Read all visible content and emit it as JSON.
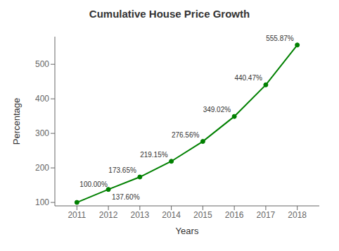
{
  "chart_data": {
    "type": "line",
    "title": "Cumulative House Price Growth",
    "xlabel": "Years",
    "ylabel": "Percentage",
    "x": [
      2011,
      2012,
      2013,
      2014,
      2015,
      2016,
      2017,
      2018
    ],
    "values": [
      100.0,
      137.6,
      173.65,
      219.15,
      276.56,
      349.02,
      440.47,
      555.87
    ],
    "value_labels": [
      "100.00%",
      "137.60%",
      "173.65%",
      "219.15%",
      "276.56%",
      "349.02%",
      "440.47%",
      "555.87%"
    ],
    "data_labels": true,
    "color": "#008000",
    "marker": "circle",
    "xlim": [
      2010.3,
      2018.7
    ],
    "xticks": [
      2011,
      2012,
      2013,
      2014,
      2015,
      2016,
      2017,
      2018
    ],
    "ylim": [
      90,
      580
    ],
    "yticks": [
      100,
      200,
      300,
      400,
      500
    ],
    "grid": false
  }
}
